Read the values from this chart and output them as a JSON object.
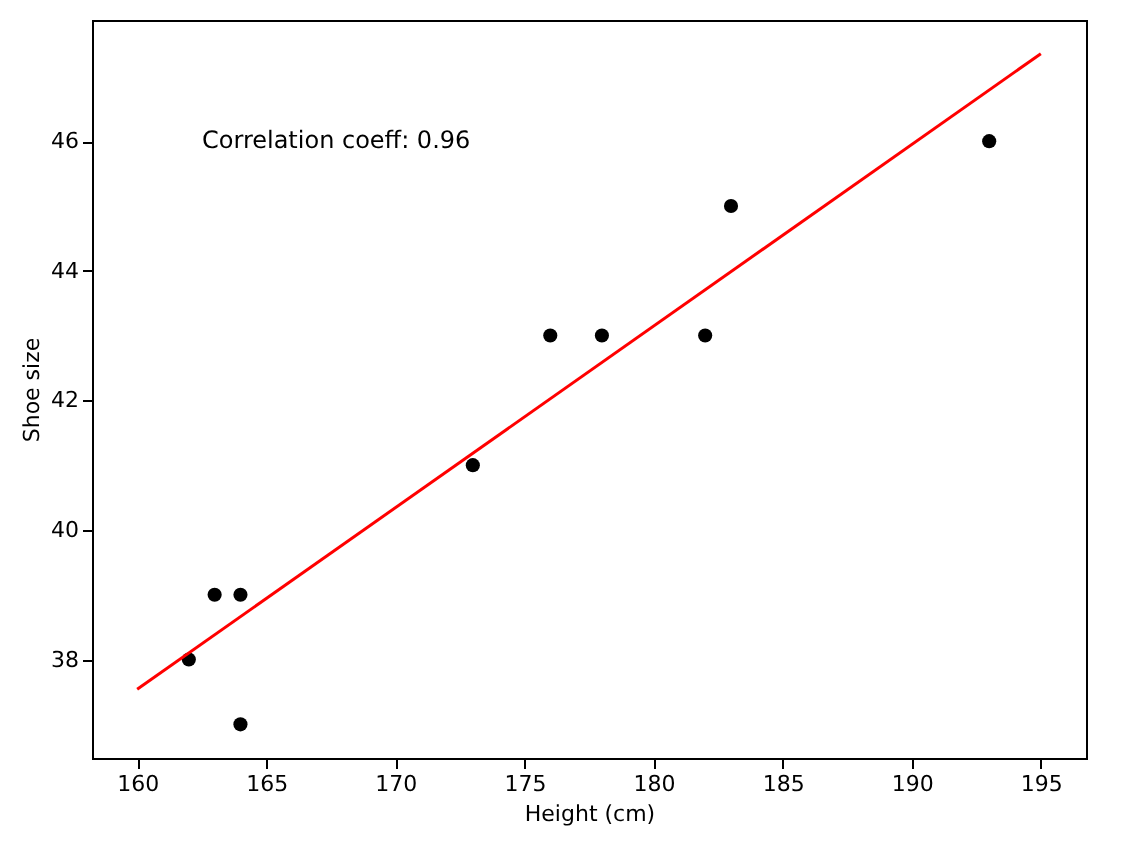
{
  "chart_data": {
    "type": "scatter",
    "xlabel": "Height (cm)",
    "ylabel": "Shoe size",
    "annotations": [
      "Correlation coeff: 0.96"
    ],
    "xlim": [
      158.25,
      196.75
    ],
    "ylim": [
      36.48,
      47.87
    ],
    "xticks": [
      160,
      165,
      170,
      175,
      180,
      185,
      190,
      195
    ],
    "yticks": [
      38,
      40,
      42,
      44,
      46
    ],
    "grid": false,
    "series": [
      {
        "marker": "circle",
        "color": "#000000",
        "x": [
          162,
          163,
          164,
          164,
          173,
          176,
          178,
          182,
          183,
          193
        ],
        "values": [
          38,
          39,
          39,
          37,
          41,
          43,
          43,
          43,
          45,
          46
        ]
      },
      {
        "type": "line",
        "marker": "none",
        "color": "#ff0000",
        "x": [
          160,
          195
        ],
        "values": [
          37.54,
          47.35
        ]
      }
    ]
  }
}
